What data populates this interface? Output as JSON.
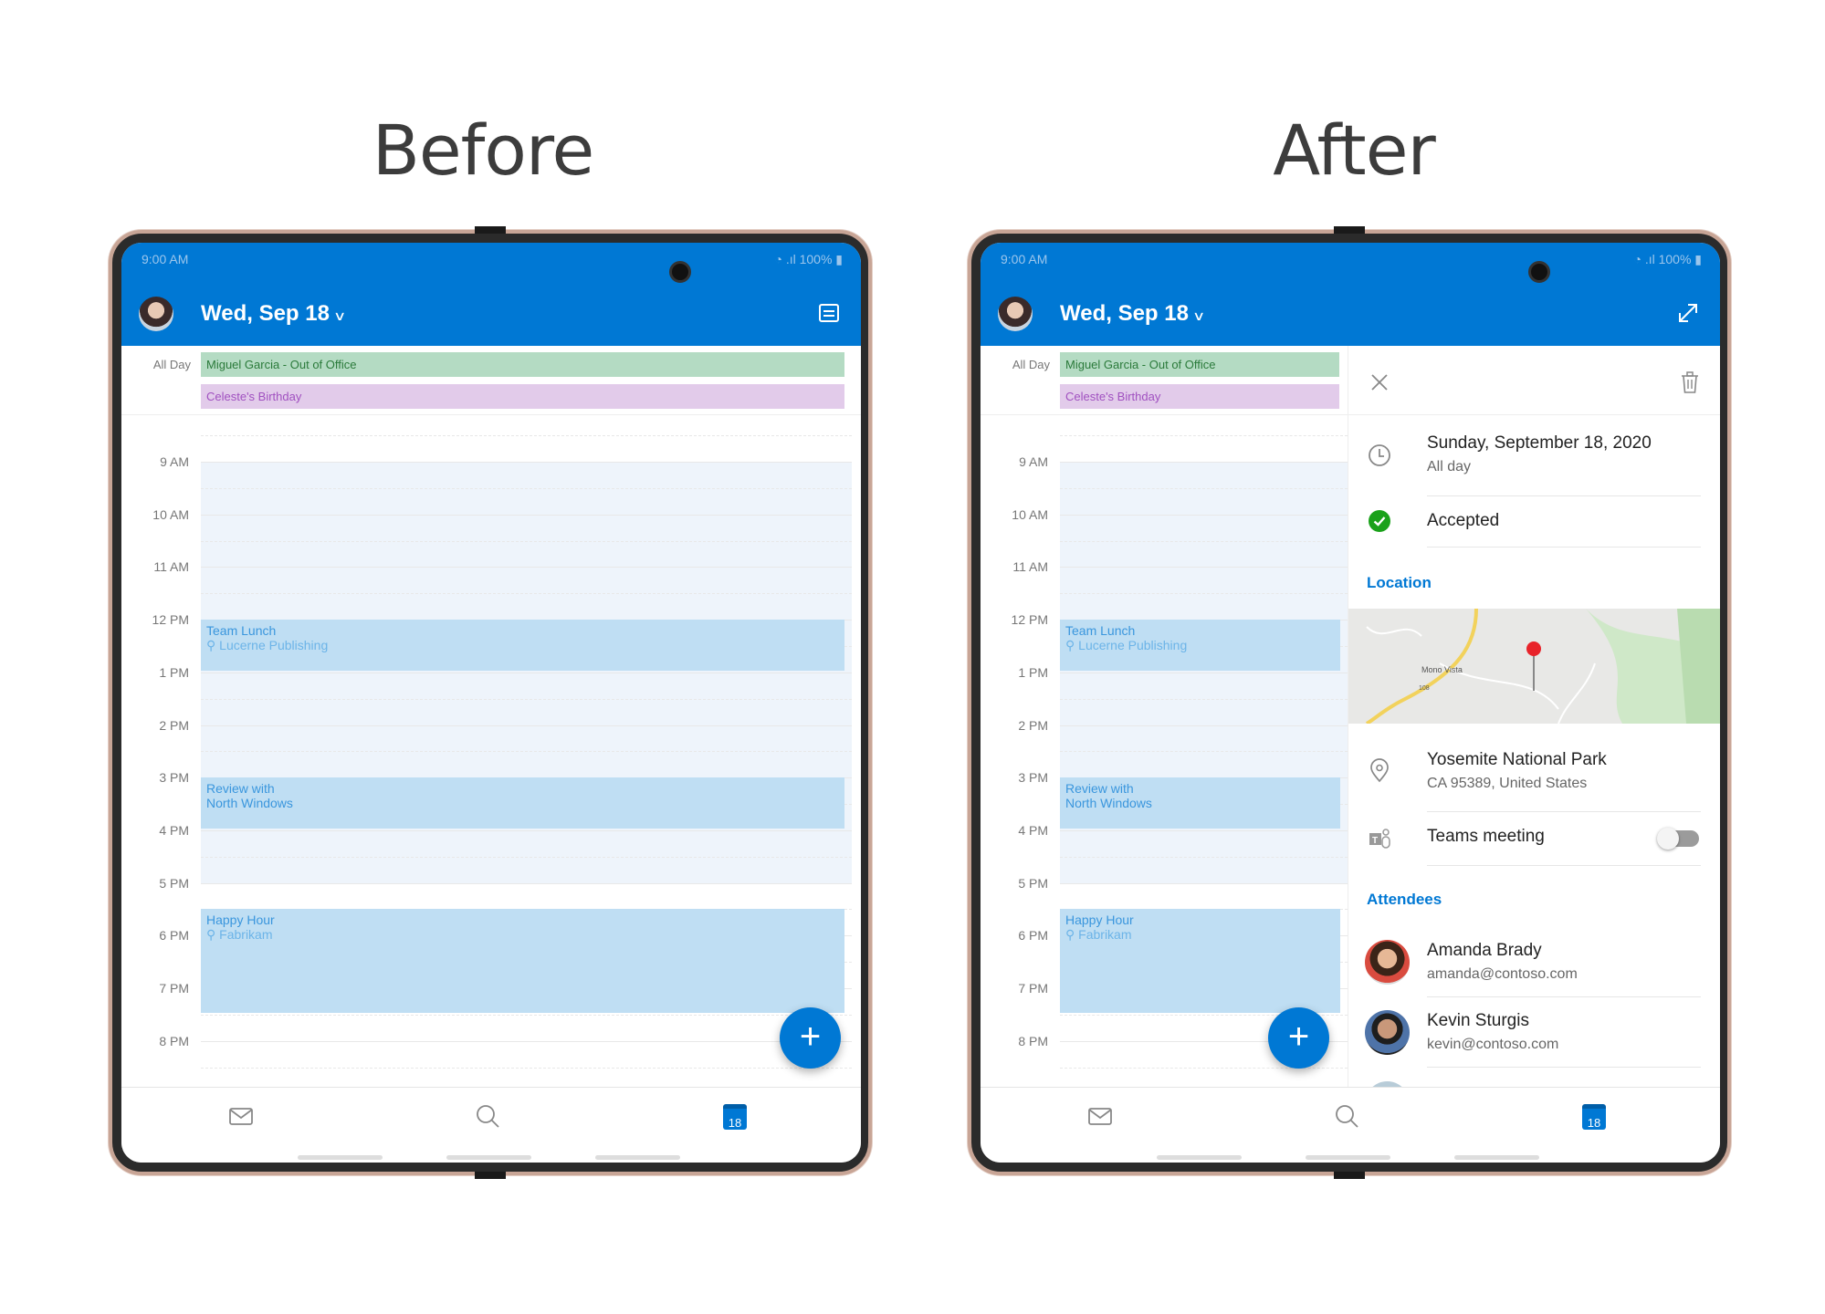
{
  "labels": {
    "before": "Before",
    "after": "After"
  },
  "colors": {
    "brand": "#0078d4",
    "accepted": "#1aa11a",
    "event_bg": "#bfdef3",
    "ooo_bg": "#b4dbc3",
    "birthday_bg": "#e2cbea"
  },
  "status_bar": {
    "time": "9:00 AM",
    "battery": "100%"
  },
  "header": {
    "title": "Wed, Sep 18",
    "before_action_icon": "agenda-view-icon",
    "after_action_icon": "expand-icon"
  },
  "all_day": {
    "label": "All Day",
    "events": [
      "Miguel Garcia - Out of Office",
      "Celeste's Birthday"
    ]
  },
  "hours": [
    "9 AM",
    "10 AM",
    "11 AM",
    "12 PM",
    "1 PM",
    "2 PM",
    "3 PM",
    "4 PM",
    "5 PM",
    "6 PM",
    "7 PM",
    "8 PM"
  ],
  "events": [
    {
      "title": "Team Lunch",
      "location": "Lucerne Publishing",
      "start": 12,
      "end": 13
    },
    {
      "title": "Review with North Windows",
      "location": "",
      "start": 15,
      "end": 16
    },
    {
      "title": "Happy Hour",
      "location": "Fabrikam",
      "start": 17.5,
      "end": 19.5
    }
  ],
  "fab": {
    "label": "+"
  },
  "bottom_nav": {
    "mail": "mail-icon",
    "search": "search-icon",
    "calendar": "18"
  },
  "detail": {
    "date": "Sunday, September 18, 2020",
    "time": "All day",
    "response": "Accepted",
    "location_header": "Location",
    "map": {
      "place_label": "Mono Vista",
      "route": "108"
    },
    "location_name": "Yosemite National Park",
    "location_address": "CA 95389, United States",
    "teams_label": "Teams meeting",
    "teams_enabled": false,
    "attendees_header": "Attendees",
    "attendees": [
      {
        "name": "Amanda Brady",
        "email": "amanda@contoso.com"
      },
      {
        "name": "Kevin Sturgis",
        "email": "kevin@contoso.com"
      }
    ]
  }
}
